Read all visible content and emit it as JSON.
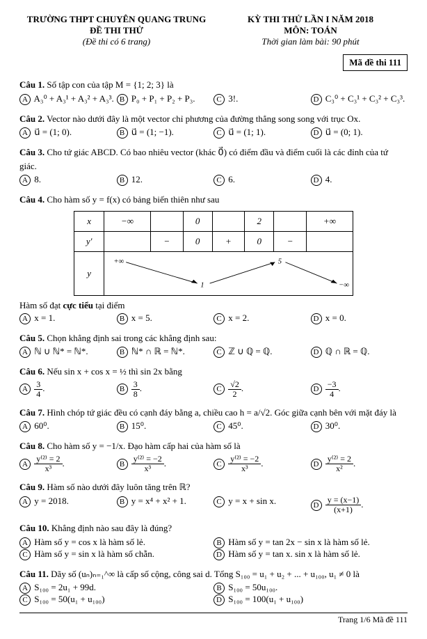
{
  "header": {
    "school": "TRƯỜNG THPT CHUYÊN QUANG TRUNG",
    "exam_label": "ĐỀ THI THỬ",
    "pages_note": "(Đề thi có 6 trang)",
    "exam_title": "KỲ THI THỬ LẦN I NĂM 2018",
    "subject": "MÔN: TOÁN",
    "duration": "Thời gian làm bài: 90 phút",
    "code_label": "Mã đề thi 111"
  },
  "questions": [
    {
      "n": "1",
      "text": "Số tập con của tập M = {1; 2; 3} là",
      "opts": [
        "A₃⁰ + A₃¹ + A₃² + A₃³.",
        "P₀ + P₁ + P₂ + P₃.",
        "3!.",
        "C₃⁰ + C₃¹ + C₃² + C₃³."
      ]
    },
    {
      "n": "2",
      "text": "Vector nào dưới đây là một vector chỉ phương của đường thẳng song song với trục Ox.",
      "opts": [
        "u⃗ = (1; 0).",
        "u⃗ = (1; −1).",
        "u⃗ = (1; 1).",
        "u⃗ = (0; 1)."
      ]
    },
    {
      "n": "3",
      "text": "Cho tứ giác ABCD. Có bao nhiêu vector (khác 0⃗) có điểm đầu và điểm cuối là các đỉnh của tứ giác.",
      "opts": [
        "8.",
        "12.",
        "6.",
        "4."
      ]
    },
    {
      "n": "4",
      "text": "Cho hàm số y = f(x) có bảng biến thiên như sau",
      "post": "Hàm số đạt cực tiểu tại điểm",
      "opts": [
        "x = 1.",
        "x = 5.",
        "x = 2.",
        "x = 0."
      ]
    },
    {
      "n": "5",
      "text": "Chọn khẳng định sai trong các khẳng định sau:",
      "opts": [
        "ℕ ∪ ℕ* = ℕ*.",
        "ℕ* ∩ ℝ = ℕ*.",
        "ℤ ∪ ℚ = ℚ.",
        "ℚ ∩ ℝ = ℚ."
      ]
    },
    {
      "n": "6",
      "text": "Nếu sin x + cos x = ½ thì sin 2x bằng",
      "opts": [
        "3/4.",
        "3/8.",
        "√2/2.",
        "−3/4."
      ]
    },
    {
      "n": "7",
      "text": "Hình chóp tứ giác đều có cạnh đáy bằng a, chiều cao h = a/√2. Góc giữa cạnh bên với mặt đáy là",
      "opts": [
        "60⁰.",
        "15⁰.",
        "45⁰.",
        "30⁰."
      ]
    },
    {
      "n": "8",
      "text": "Cho hàm số y = −1/x. Đạo hàm cấp hai của hàm số là",
      "opts": [
        "y⁽²⁾ = 2/x³.",
        "y⁽²⁾ = −2/x³.",
        "y⁽²⁾ = −2/x³.",
        "y⁽²⁾ = 2/x²."
      ]
    },
    {
      "n": "9",
      "text": "Hàm số nào dưới đây luôn tăng trên ℝ?",
      "opts": [
        "y = 2018.",
        "y = x⁴ + x² + 1.",
        "y = x + sin x.",
        "y = (x−1)/(x+1)."
      ]
    },
    {
      "n": "10",
      "text": "Khẳng định nào sau đây là đúng?",
      "opts": [
        "Hàm số y = cos x là hàm số lẻ.",
        "Hàm số y = tan 2x − sin x là hàm số lẻ.",
        "Hàm số y = sin x là hàm số chẵn.",
        "Hàm số y = tan x. sin x là hàm số lẻ."
      ]
    },
    {
      "n": "11",
      "text": "Dãy số (uₙ)ₙ₌₁^∞ là cấp số cộng, công sai d. Tổng S₁₀₀ = u₁ + u₂ + ... + u₁₀₀, u₁ ≠ 0 là",
      "opts": [
        "S₁₀₀ = 2u₁ + 99d.",
        "S₁₀₀ = 50u₁₀₀.",
        "S₁₀₀ = 50(u₁ + u₁₀₀)",
        "S₁₀₀ = 100(u₁ + u₁₀₀)"
      ]
    }
  ],
  "variation_table": {
    "x_row": [
      "x",
      "−∞",
      "",
      "0",
      "",
      "2",
      "",
      "+∞"
    ],
    "yprime_row": [
      "y'",
      "",
      "−",
      "0",
      "+",
      "0",
      "−",
      ""
    ],
    "y_top": [
      "+∞",
      "",
      "",
      "",
      "5",
      "",
      ""
    ],
    "y_bot": [
      "",
      "",
      "1",
      "",
      "",
      "",
      "−∞"
    ]
  },
  "footer": "Trang 1/6 Mã đề 111"
}
